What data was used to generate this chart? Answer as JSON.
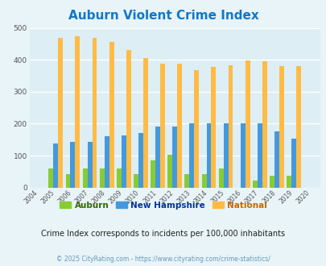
{
  "title": "Auburn Violent Crime Index",
  "years": [
    "04",
    "05",
    "06",
    "07",
    "08",
    "09",
    "10",
    "11",
    "12",
    "13",
    "14",
    "15",
    "16",
    "17",
    "18",
    "19",
    "20"
  ],
  "auburn": [
    0,
    60,
    42,
    60,
    60,
    60,
    42,
    85,
    102,
    42,
    42,
    60,
    0,
    22,
    38,
    38,
    0
  ],
  "new_hampshire": [
    0,
    138,
    142,
    142,
    160,
    163,
    170,
    190,
    190,
    202,
    200,
    202,
    200,
    202,
    175,
    152,
    0
  ],
  "national": [
    0,
    470,
    473,
    468,
    455,
    432,
    405,
    387,
    387,
    368,
    378,
    384,
    398,
    395,
    380,
    380,
    0
  ],
  "auburn_color": "#88cc33",
  "nh_color": "#4499dd",
  "national_color": "#ffbb44",
  "bg_color": "#e8f4f8",
  "plot_bg_color": "#ddeef5",
  "ylim": [
    0,
    500
  ],
  "yticks": [
    0,
    100,
    200,
    300,
    400,
    500
  ],
  "subtitle": "Crime Index corresponds to incidents per 100,000 inhabitants",
  "footer": "© 2025 CityRating.com - https://www.cityrating.com/crime-statistics/",
  "bar_width": 0.28,
  "legend_labels": [
    "Auburn",
    "New Hampshire",
    "National"
  ],
  "legend_text_colors": [
    "#336600",
    "#003399",
    "#cc6600"
  ]
}
